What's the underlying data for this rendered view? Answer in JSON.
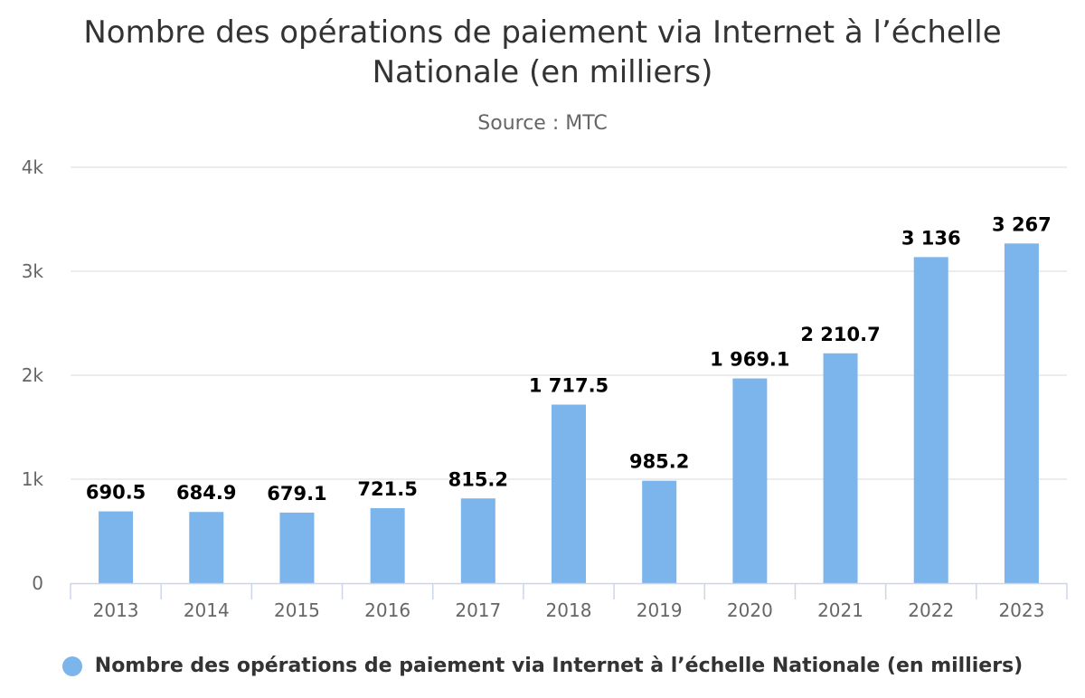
{
  "chart_data": {
    "type": "bar",
    "title": "Nombre des opérations de paiement via Internet à l’échelle Nationale (en milliers)",
    "subtitle": "Source : MTC",
    "categories": [
      "2013",
      "2014",
      "2015",
      "2016",
      "2017",
      "2018",
      "2019",
      "2020",
      "2021",
      "2022",
      "2023"
    ],
    "series": [
      {
        "name": "Nombre des opérations de paiement via Internet à l’échelle Nationale (en milliers)",
        "values": [
          690.5,
          684.9,
          679.1,
          721.5,
          815.2,
          1717.5,
          985.2,
          1969.1,
          2210.7,
          3136,
          3267
        ],
        "data_labels": [
          "690.5",
          "684.9",
          "679.1",
          "721.5",
          "815.2",
          "1 717.5",
          "985.2",
          "1 969.1",
          "2 210.7",
          "3 136",
          "3 267"
        ],
        "color": "#7cb5ec"
      }
    ],
    "xlabel": "",
    "ylabel": "",
    "ylim": [
      0,
      4000
    ],
    "yticks": [
      0,
      1000,
      2000,
      3000,
      4000
    ],
    "ytick_labels": [
      "0",
      "1k",
      "2k",
      "3k",
      "4k"
    ],
    "grid": true,
    "legend_position": "bottom-center",
    "colors": {
      "grid": "#e6e6e6",
      "axis": "#ccd6eb",
      "tick_text": "#666666",
      "data_label": "#000000"
    }
  }
}
